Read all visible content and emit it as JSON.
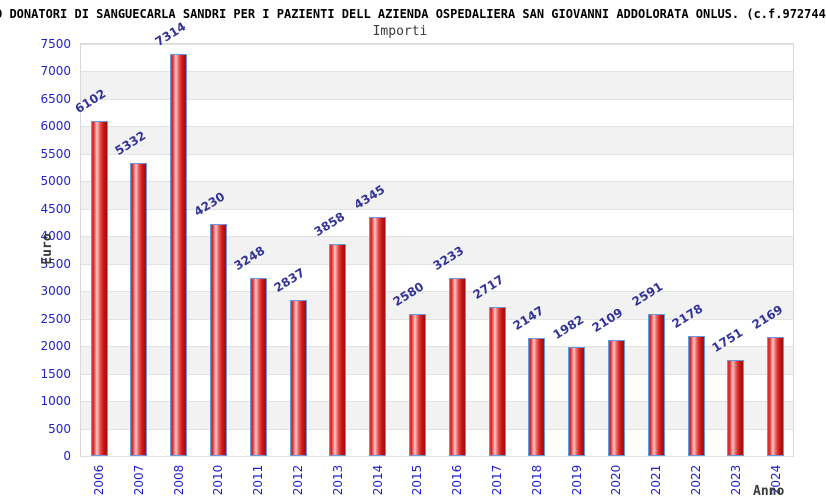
{
  "page_title": "O DONATORI DI SANGUECARLA SANDRI PER I PAZIENTI DELL AZIENDA OSPEDALIERA SAN GIOVANNI ADDOLORATA ONLUS. (c.f.972744",
  "chart": {
    "subtitle": "Importi",
    "ylabel": "Euro",
    "xlabel": "Anno"
  },
  "chart_data": {
    "type": "bar",
    "title": "Importi",
    "xlabel": "Anno",
    "ylabel": "Euro",
    "categories": [
      "2006",
      "2007",
      "2008",
      "2010",
      "2011",
      "2012",
      "2013",
      "2014",
      "2015",
      "2016",
      "2017",
      "2018",
      "2019",
      "2020",
      "2021",
      "2022",
      "2023",
      "2024"
    ],
    "values": [
      6102,
      5332,
      7314,
      4230,
      3248,
      2837,
      3858,
      4345,
      2580,
      3233,
      2717,
      2147,
      1982,
      2109,
      2591,
      2178,
      1751,
      2169
    ],
    "ylim": [
      0,
      7500
    ],
    "ytick_step": 500,
    "grid": true,
    "legend": false,
    "note": "year 2009 absent from x axis"
  },
  "colors": {
    "axis_text": "#2222cc",
    "value_label": "#333399",
    "bar_border": "#6699dd",
    "bar_gradient": [
      "#e04545 0%",
      "#cf1d1d 7%",
      "#ea6a6a 20%",
      "#ffc8c8 33%",
      "#ef7070 48%",
      "#dd3030 64%",
      "#c21414 80%",
      "#9d0f0f 100%"
    ],
    "band_gray": "#f2f2f2",
    "band_white": "#ffffff",
    "gridline": "#e2e2e2",
    "plot_border": "#d9d9d9",
    "title_text": "#000000",
    "subtitle_text": "#3c3c3c"
  }
}
